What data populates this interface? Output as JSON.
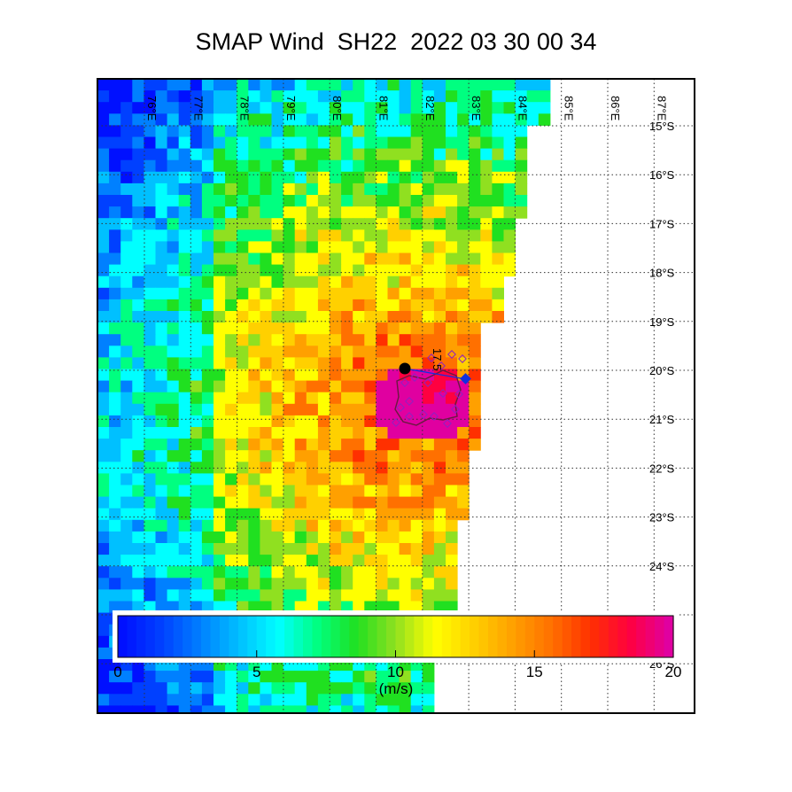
{
  "title": "SMAP Wind  SH22  2022 03 30 00 34",
  "map": {
    "lon_labels": [
      "76°E",
      "77°E",
      "78°E",
      "79°E",
      "80°E",
      "81°E",
      "82°E",
      "83°E",
      "84°E",
      "85°E",
      "86°E",
      "87°E"
    ],
    "lat_labels": [
      "15°S",
      "16°S",
      "17°S",
      "18°S",
      "19°S",
      "20°S",
      "21°S",
      "22°S",
      "23°S",
      "24°S",
      "25°S",
      "26°S"
    ],
    "contour_label": "17.5",
    "track_colors": {
      "center_marker": "#000000",
      "forecast_marker": "#1030e0",
      "radius_markers": "#9020c0"
    }
  },
  "colorbar": {
    "ticks": [
      "0",
      "5",
      "10",
      "15",
      "20"
    ],
    "unit": "(m/s)",
    "min": 0,
    "max": 20,
    "colors": [
      "#0010ff",
      "#0040ff",
      "#0080ff",
      "#00c0ff",
      "#00ffff",
      "#00ff80",
      "#20e020",
      "#90e020",
      "#ffff00",
      "#ffd000",
      "#ffa000",
      "#ff7000",
      "#ff3000",
      "#ff0040",
      "#e000a0"
    ]
  }
}
